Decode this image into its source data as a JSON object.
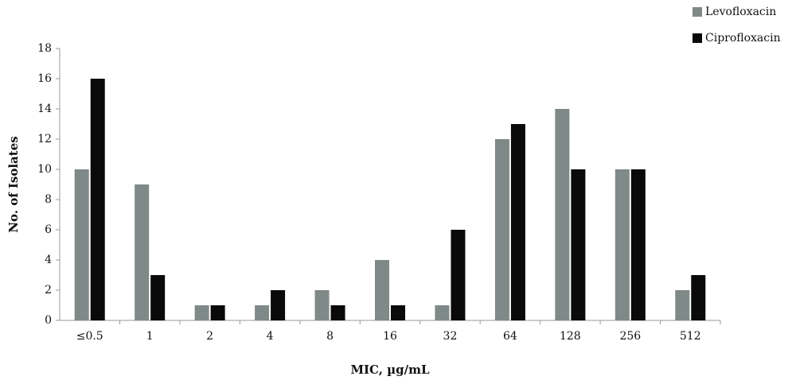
{
  "chart_data": {
    "type": "bar",
    "xlabel": "MIC, µg/mL",
    "ylabel": "No. of Isolates",
    "categories": [
      "≤0.5",
      "1",
      "2",
      "4",
      "8",
      "16",
      "32",
      "64",
      "128",
      "256",
      "512"
    ],
    "series": [
      {
        "name": "Levofloxacin",
        "color": "#7f8988",
        "values": [
          10,
          9,
          1,
          1,
          2,
          4,
          1,
          12,
          14,
          10,
          2
        ]
      },
      {
        "name": "Ciprofloxacin",
        "color": "#0a0a0a",
        "values": [
          16,
          3,
          1,
          2,
          1,
          1,
          6,
          13,
          10,
          10,
          3
        ]
      }
    ],
    "ylim": [
      0,
      18
    ],
    "yticks": [
      0,
      2,
      4,
      6,
      8,
      10,
      12,
      14,
      16,
      18
    ],
    "grid": false
  }
}
